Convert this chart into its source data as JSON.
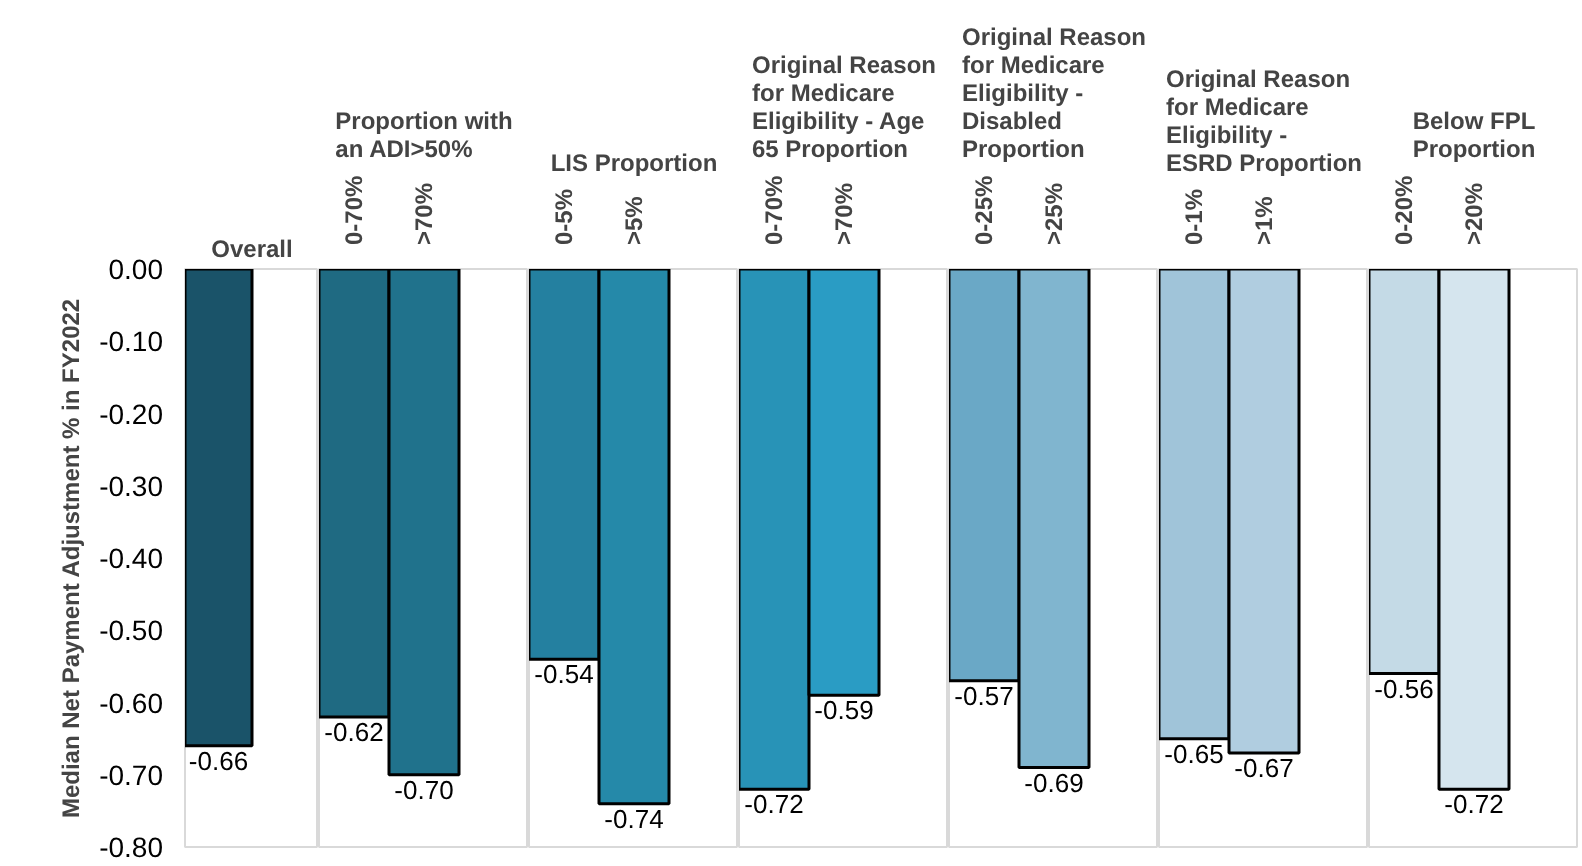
{
  "chart_data": [
    {
      "type": "bar",
      "title": "Overall",
      "ylabel": "Median Net Payment Adjustment % in FY2022",
      "categories": [
        null
      ],
      "values": [
        -0.66
      ],
      "value_labels": [
        "-0.66"
      ],
      "colors": [
        "#1a5369"
      ],
      "ylim": [
        -0.8,
        0
      ],
      "yticks": [
        {
          "value": 0,
          "label": "0.00"
        },
        {
          "value": -0.1,
          "label": "-0.10"
        },
        {
          "value": -0.2,
          "label": "-0.20"
        },
        {
          "value": -0.3,
          "label": "-0.30"
        },
        {
          "value": -0.4,
          "label": "-0.40"
        },
        {
          "value": -0.5,
          "label": "-0.50"
        },
        {
          "value": -0.6,
          "label": "-0.60"
        },
        {
          "value": -0.7,
          "label": "-0.70"
        },
        {
          "value": -0.8,
          "label": "-0.80"
        }
      ]
    },
    {
      "type": "bar",
      "title": "Proportion with an ADI>50%",
      "categories": [
        "0-70%",
        ">70%"
      ],
      "values": [
        -0.62,
        -0.7
      ],
      "value_labels": [
        "-0.62",
        "-0.70"
      ],
      "colors": [
        "#1f6a82",
        "#20728c"
      ],
      "ylim": [
        -0.8,
        0
      ],
      "tick_labels": "x"
    },
    {
      "type": "bar",
      "title": "LIS Proportion",
      "categories": [
        "0-5%",
        ">5%"
      ],
      "values": [
        -0.54,
        -0.74
      ],
      "value_labels": [
        "-0.54",
        "-0.74"
      ],
      "colors": [
        "#2480a0",
        "#2589a9"
      ],
      "ylim": [
        -0.8,
        0
      ],
      "tick_labels": "x"
    },
    {
      "type": "bar",
      "title": "Original Reason for Medicare Eligibility - Age 65 Proportion",
      "categories": [
        "0-70%",
        ">70%"
      ],
      "values": [
        -0.72,
        -0.59
      ],
      "value_labels": [
        "-0.72",
        "-0.59"
      ],
      "colors": [
        "#2893b7",
        "#2a9cc4"
      ],
      "ylim": [
        -0.8,
        0
      ],
      "tick_labels": "x"
    },
    {
      "type": "bar",
      "title": "Original Reason for Medicare Eligibility - Disabled Proportion",
      "categories": [
        "0-25%",
        ">25%"
      ],
      "values": [
        -0.57,
        -0.69
      ],
      "value_labels": [
        "-0.57",
        "-0.69"
      ],
      "colors": [
        "#6aa8c6",
        "#80b5cf"
      ],
      "ylim": [
        -0.8,
        0
      ],
      "tick_labels": "x"
    },
    {
      "type": "bar",
      "title": "Original Reason for Medicare Eligibility - ESRD Proportion",
      "categories": [
        "0-1%",
        ">1%"
      ],
      "values": [
        -0.65,
        -0.67
      ],
      "value_labels": [
        "-0.65",
        "-0.67"
      ],
      "colors": [
        "#a0c4d9",
        "#b0cde0"
      ],
      "ylim": [
        -0.8,
        0
      ],
      "tick_labels": "x"
    },
    {
      "type": "bar",
      "title": "Below FPL Proportion",
      "categories": [
        "0-20%",
        ">20%"
      ],
      "values": [
        -0.56,
        -0.72
      ],
      "value_labels": [
        "-0.56",
        "-0.72"
      ],
      "colors": [
        "#c4dae6",
        "#d5e5ee"
      ],
      "ylim": [
        -0.8,
        0
      ],
      "tick_labels": "x"
    }
  ]
}
